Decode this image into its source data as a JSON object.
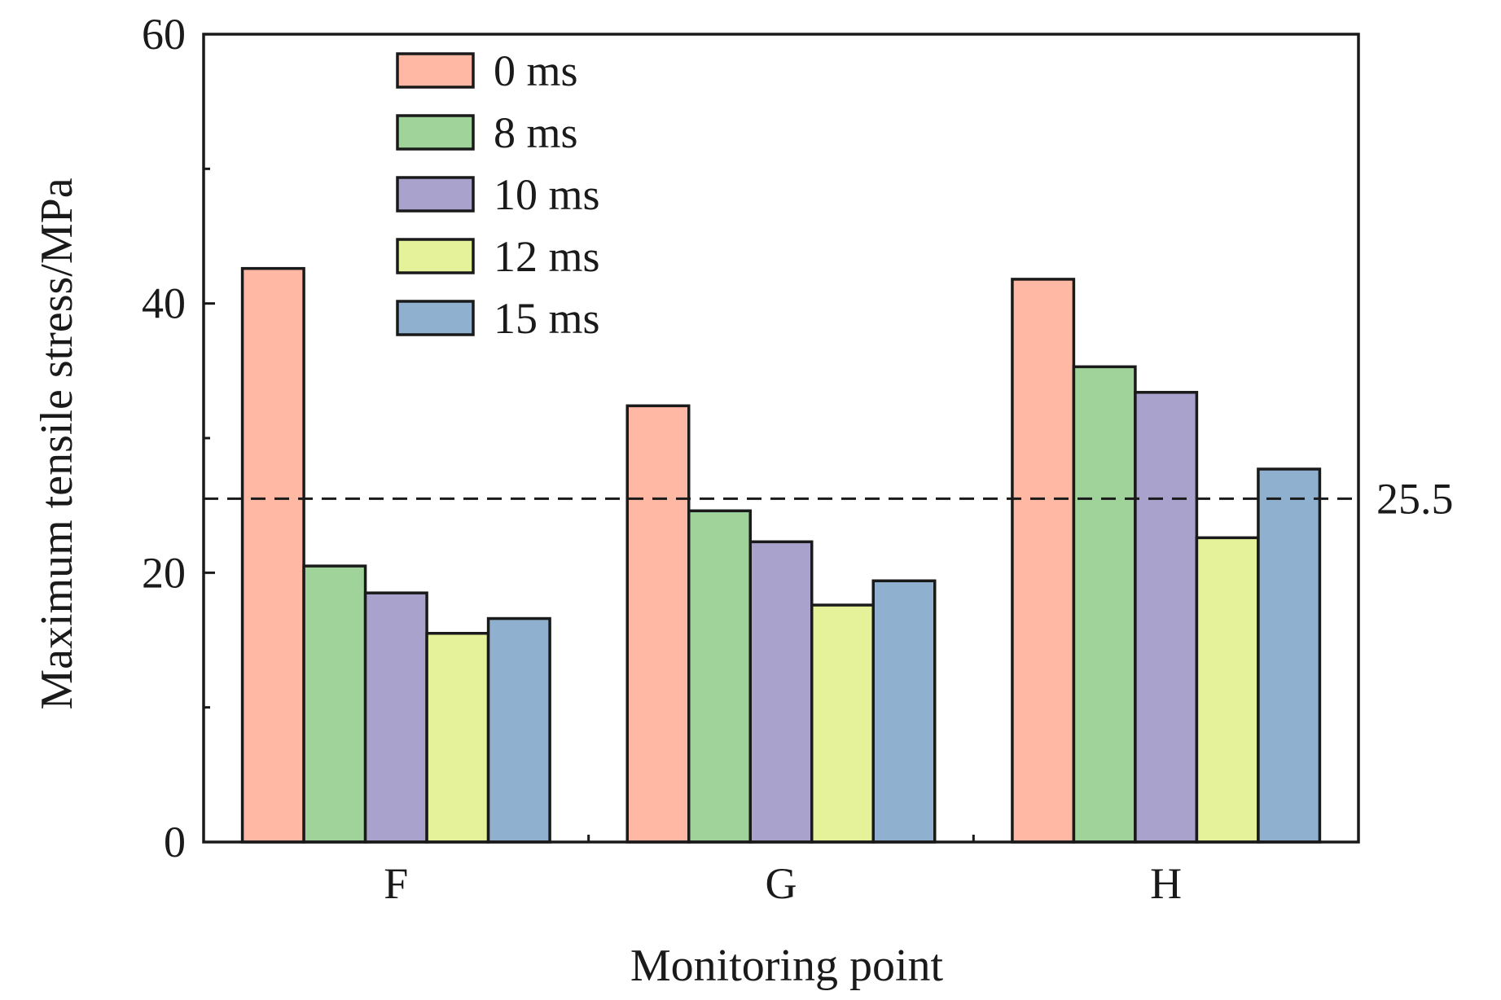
{
  "chart_data": {
    "type": "bar",
    "title": "",
    "xlabel": "Monitoring point",
    "ylabel": "Maximum tensile stress/MPa",
    "categories": [
      "F",
      "G",
      "H"
    ],
    "ylim": [
      0,
      60
    ],
    "yticks": [
      0,
      20,
      40,
      60
    ],
    "yminor": [
      10,
      30,
      50
    ],
    "grid": false,
    "legend_position": "top-left",
    "series": [
      {
        "name": "0 ms",
        "color": "#FFB8A3",
        "values": [
          42.6,
          32.4,
          41.8
        ]
      },
      {
        "name": "8 ms",
        "color": "#9FD39A",
        "values": [
          20.5,
          24.6,
          35.3
        ]
      },
      {
        "name": "10 ms",
        "color": "#A8A2CC",
        "values": [
          18.5,
          22.3,
          33.4
        ]
      },
      {
        "name": "12 ms",
        "color": "#E5F29A",
        "values": [
          15.5,
          17.6,
          22.6
        ]
      },
      {
        "name": "15 ms",
        "color": "#8FB0CE",
        "values": [
          16.6,
          19.4,
          27.7
        ]
      }
    ],
    "reference_line": {
      "value": 25.5,
      "label": "25.5",
      "style": "dashed"
    }
  }
}
